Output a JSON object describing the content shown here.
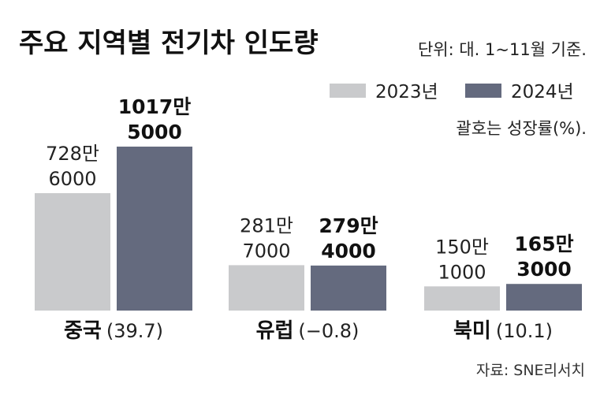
{
  "chart_data": {
    "type": "bar",
    "title": "주요 지역별 전기차 인도량",
    "unit_note": "단위: 대. 1~11월 기준.",
    "growth_note": "괄호는 성장률(%).",
    "source": "자료: SNE리서치",
    "categories": [
      "중국",
      "유럽",
      "북미"
    ],
    "growth": [
      "(39.7)",
      "(−0.8)",
      "(10.1)"
    ],
    "series": [
      {
        "name": "2023년",
        "color": "#c9cacc",
        "values": [
          7286000,
          2817000,
          1501000
        ],
        "labels": [
          [
            "728만",
            "6000"
          ],
          [
            "281만",
            "7000"
          ],
          [
            "150만",
            "1000"
          ]
        ]
      },
      {
        "name": "2024년",
        "color": "#646a7e",
        "values": [
          10175000,
          2794000,
          1653000
        ],
        "labels": [
          [
            "1017만",
            "5000"
          ],
          [
            "279만",
            "4000"
          ],
          [
            "165만",
            "3000"
          ]
        ]
      }
    ],
    "ylim": [
      0,
      10175000
    ],
    "grid": false,
    "legend": "top-right"
  }
}
